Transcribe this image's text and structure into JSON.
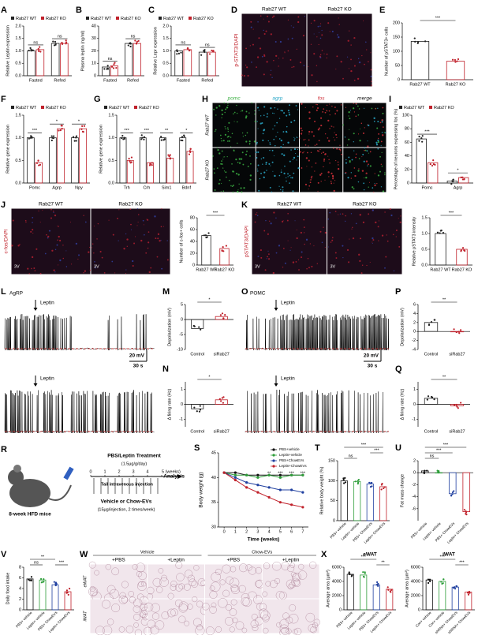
{
  "chart_data": [
    {
      "type": "bar",
      "panel": "A",
      "ylabel": "Relative Leptin expression",
      "categories": [
        "Fasted",
        "Refed"
      ],
      "series": [
        {
          "name": "Rab27 WT",
          "color": "#222222",
          "values": [
            1.0,
            1.3
          ]
        },
        {
          "name": "Rab27 KO",
          "color": "#c0202a",
          "values": [
            1.05,
            1.3
          ]
        }
      ],
      "ylim": [
        0,
        2
      ],
      "yticks": [
        {
          "value": 0,
          "label": "0.0"
        },
        0.5,
        {
          "value": 1,
          "label": "1.0"
        },
        1.5,
        {
          "value": 2,
          "label": "2.0"
        }
      ],
      "sig": [
        "ns",
        "ns"
      ]
    },
    {
      "type": "bar",
      "panel": "B",
      "ylabel": "Plasma leptin (ng/ml)",
      "categories": [
        "Fasted",
        "Refed"
      ],
      "series": [
        {
          "name": "Rab27 WT",
          "color": "#222222",
          "values": [
            7,
            26
          ]
        },
        {
          "name": "Rab27 KO",
          "color": "#c0202a",
          "values": [
            8,
            26
          ]
        }
      ],
      "ylim": [
        0,
        40
      ],
      "yticks": [
        0,
        10,
        20,
        30,
        40
      ],
      "sig": [
        "ns",
        "ns"
      ]
    },
    {
      "type": "bar",
      "panel": "C",
      "ylabel": "Relative Lepr expression",
      "categories": [
        "Fasted",
        "Refed"
      ],
      "series": [
        {
          "name": "Rab27 WT",
          "color": "#222222",
          "values": [
            1.0,
            0.95
          ]
        },
        {
          "name": "Rab27 KO",
          "color": "#c0202a",
          "values": [
            1.05,
            0.95
          ]
        }
      ],
      "ylim": [
        0,
        2
      ],
      "yticks": [
        {
          "value": 0,
          "label": "0.0"
        },
        0.5,
        {
          "value": 1,
          "label": "1.0"
        },
        1.5,
        {
          "value": 2,
          "label": "2.0"
        }
      ],
      "sig": [
        "ns",
        "ns"
      ]
    },
    {
      "type": "bar",
      "panel": "E",
      "ylabel": "Number of pSTAT3+ cells",
      "categories": [
        "Rab27 WT",
        "Rab27 KO"
      ],
      "values": [
        135,
        65
      ],
      "colors": [
        "#222222",
        "#c0202a"
      ],
      "ylim": [
        0,
        200
      ],
      "yticks": [
        0,
        50,
        100,
        150,
        200
      ],
      "sig": [
        "***"
      ]
    },
    {
      "type": "bar",
      "panel": "F",
      "ylabel": "Relative gene expression",
      "categories": [
        "Pomc",
        "Agrp",
        "Npy"
      ],
      "series": [
        {
          "name": "Rab27 WT",
          "color": "#222222",
          "values": [
            1.0,
            1.0,
            1.0
          ]
        },
        {
          "name": "Rab27 KO",
          "color": "#c0202a",
          "values": [
            0.45,
            1.2,
            1.2
          ]
        }
      ],
      "ylim": [
        0,
        1.5
      ],
      "yticks": [
        {
          "value": 0,
          "label": "0.0"
        },
        0.5,
        {
          "value": 1,
          "label": "1.0"
        },
        1.5
      ],
      "sig": [
        "***",
        "*",
        "*"
      ]
    },
    {
      "type": "bar",
      "panel": "G",
      "ylabel": "Relative gene expression",
      "categories": [
        "Trh",
        "Crh",
        "Sim1",
        "Bdnf"
      ],
      "series": [
        {
          "name": "Rab27 WT",
          "color": "#222222",
          "values": [
            1.0,
            1.0,
            1.0,
            1.0
          ]
        },
        {
          "name": "Rab27 KO",
          "color": "#c0202a",
          "values": [
            0.5,
            0.45,
            0.55,
            0.7
          ]
        }
      ],
      "ylim": [
        0,
        1.5
      ],
      "yticks": [
        {
          "value": 0,
          "label": "0.0"
        },
        0.5,
        {
          "value": 1,
          "label": "1.0"
        },
        1.5
      ],
      "sig": [
        "***",
        "***",
        "**",
        "*"
      ]
    },
    {
      "type": "bar",
      "panel": "I",
      "ylabel": "Percentage of neurons expressing fos (%)",
      "categories": [
        "Pomc",
        "Agrp"
      ],
      "series": [
        {
          "name": "Rab27 WT",
          "color": "#222222",
          "values": [
            65,
            3
          ]
        },
        {
          "name": "Rab27 KO",
          "color": "#c0202a",
          "values": [
            30,
            8
          ]
        }
      ],
      "ylim": [
        0,
        100
      ],
      "yticks": [
        0,
        20,
        40,
        60,
        80,
        100
      ],
      "sig": [
        "***",
        "*"
      ]
    },
    {
      "type": "bar",
      "ylabel": "Number of c-fos+ cells",
      "categories": [
        "Rab27 WT",
        "Rab27 KO"
      ],
      "values": [
        50,
        28
      ],
      "colors": [
        "#222222",
        "#c0202a"
      ],
      "ylim": [
        0,
        80
      ],
      "yticks": [
        0,
        20,
        40,
        60,
        80
      ],
      "sig": [
        "***"
      ]
    },
    {
      "type": "bar",
      "ylabel": "Relative pSTAT3 intensity",
      "categories": [
        "Rab27 WT",
        "Rab27 KO"
      ],
      "values": [
        1.0,
        0.5
      ],
      "colors": [
        "#222222",
        "#c0202a"
      ],
      "ylim": [
        0,
        1.5
      ],
      "yticks": [
        {
          "value": 0,
          "label": "0.0"
        },
        0.5,
        {
          "value": 1,
          "label": "1.0"
        },
        1.5
      ],
      "sig": [
        "***"
      ]
    },
    {
      "type": "bar",
      "panel": "M",
      "ylabel": "Depolarization (mV)",
      "categories": [
        "Control",
        "siRab27"
      ],
      "values": [
        -3,
        1
      ],
      "colors": [
        "#222222",
        "#c0202a"
      ],
      "ylim": [
        -10,
        5
      ],
      "yticks": [
        -10,
        -5,
        0,
        5
      ],
      "sig": [
        "*"
      ]
    },
    {
      "type": "bar",
      "panel": "N",
      "ylabel": "Δ firing rate (Hz)",
      "categories": [
        "Control",
        "siRab27"
      ],
      "values": [
        -0.3,
        0.3
      ],
      "colors": [
        "#222222",
        "#c0202a"
      ],
      "ylim": [
        -1.5,
        1.5
      ],
      "yticks": [
        -1,
        0,
        1
      ],
      "sig": [
        "*"
      ]
    },
    {
      "type": "bar",
      "panel": "P",
      "ylabel": "Depolarization (mV)",
      "categories": [
        "Control",
        "siRab27"
      ],
      "values": [
        2,
        0
      ],
      "colors": [
        "#222222",
        "#c0202a"
      ],
      "ylim": [
        -4,
        6
      ],
      "yticks": [
        -4,
        -2,
        0,
        2,
        4,
        6
      ],
      "sig": [
        "**"
      ]
    },
    {
      "type": "bar",
      "panel": "Q",
      "ylabel": "Δ firing rate (Hz)",
      "categories": [
        "Control",
        "siRab27"
      ],
      "values": [
        0.4,
        -0.1
      ],
      "colors": [
        "#222222",
        "#c0202a"
      ],
      "ylim": [
        -1.5,
        1.5
      ],
      "yticks": [
        -1,
        0,
        1
      ],
      "sig": [
        "**"
      ]
    },
    {
      "type": "line",
      "panel": "S",
      "ylabel": "Body weight (g)",
      "xlabel": "Time (weeks)",
      "x": [
        0,
        1,
        2,
        3,
        4,
        5,
        6,
        7
      ],
      "series": [
        {
          "name": "PBS+vehicle",
          "color": "#111111",
          "values": [
            41,
            41,
            40.5,
            40.5,
            40.5,
            40.5,
            40.5,
            40.5
          ]
        },
        {
          "name": "Leptin+vehicle",
          "color": "#2e9e3a",
          "values": [
            41,
            40.5,
            40.5,
            40,
            40.5,
            40,
            40.5,
            40.5
          ]
        },
        {
          "name": "PBS+ChowEVs",
          "color": "#2040a0",
          "values": [
            41,
            40,
            39,
            38.5,
            38,
            37.5,
            37.5,
            37
          ]
        },
        {
          "name": "Leptin+ChowEVs",
          "color": "#c0202a",
          "values": [
            41,
            39.5,
            38,
            37,
            36,
            35,
            34.5,
            34
          ]
        }
      ],
      "xlim": [
        -0.5,
        7.5
      ],
      "xticks": [
        0,
        1,
        2,
        3,
        4,
        5,
        6,
        7
      ],
      "ylim": [
        30,
        45
      ],
      "yticks": [
        30,
        35,
        40,
        45
      ],
      "annotations": [
        {
          "x": 4,
          "text": "**"
        },
        {
          "x": 5,
          "text": "***"
        },
        {
          "x": 6,
          "text": "***"
        },
        {
          "x": 7,
          "text": "***"
        }
      ]
    },
    {
      "type": "bar",
      "panel": "T",
      "ylabel": "Relative body weight (%)",
      "categories": [
        "PBS+ vehicle",
        "Leptin+ vehicle",
        "PBS+ ChowEVs",
        "Leptin+ ChowEVs"
      ],
      "values": [
        100,
        98,
        92,
        85
      ],
      "colors": [
        "#111111",
        "#2e9e3a",
        "#2040a0",
        "#c0202a"
      ],
      "ylim": [
        0,
        150
      ],
      "yticks": [
        0,
        50,
        100,
        150
      ],
      "sig": [
        "***",
        "ns",
        "***"
      ]
    },
    {
      "type": "bar",
      "panel": "U",
      "ylabel": "Fat mass change",
      "categories": [
        "PBS+ vehicle",
        "Leptin+ vehicle",
        "PBS+ ChowEVs",
        "Leptin+ ChowEVs"
      ],
      "values": [
        0.3,
        0,
        -3.5,
        -6.5
      ],
      "colors": [
        "#111111",
        "#2e9e3a",
        "#2040a0",
        "#c0202a"
      ],
      "ylim": [
        -8,
        2
      ],
      "yticks": [
        -6,
        -4,
        -2,
        0,
        2
      ],
      "sig": [
        "***",
        "***",
        "ns"
      ]
    },
    {
      "type": "bar",
      "panel": "V",
      "ylabel": "Daily food intake",
      "categories": [
        "PBS+ vehicle",
        "Leptin+ vehicle",
        "PBS+ ChowEVs",
        "Leptin+ ChowEVs"
      ],
      "values": [
        5.8,
        5.6,
        4.7,
        3.4
      ],
      "colors": [
        "#111111",
        "#2e9e3a",
        "#2040a0",
        "#c0202a"
      ],
      "ylim": [
        0,
        8
      ],
      "yticks": [
        0,
        2,
        4,
        6,
        8
      ],
      "sig": [
        "**",
        "ns",
        "***"
      ]
    },
    {
      "type": "bar",
      "panel": "X",
      "title": "eWAT",
      "ylabel": "Average area (μm²)",
      "categories": [
        "PBS+ vehicle",
        "Leptin+ vehicle",
        "PBS+ ChowEVs",
        "Leptin+ ChowEVs"
      ],
      "values": [
        5000,
        4900,
        3500,
        2900
      ],
      "colors": [
        "#111111",
        "#2e9e3a",
        "#2040a0",
        "#c0202a"
      ],
      "ylim": [
        0,
        6000
      ],
      "yticks": [
        0,
        2000,
        4000,
        6000
      ],
      "sig": [
        "***",
        "**"
      ]
    },
    {
      "type": "bar",
      "title": "iWAT",
      "ylabel": "Average area (μm²)",
      "categories": [
        "Con+ vehicle",
        "Con+ vehicle",
        "shRNA+ ChowEVs",
        "shRNA+ ChowEVs"
      ],
      "values": [
        4200,
        4000,
        3200,
        2500
      ],
      "colors": [
        "#111111",
        "#2e9e3a",
        "#2040a0",
        "#c0202a"
      ],
      "ylim": [
        0,
        6000
      ],
      "yticks": [
        0,
        2000,
        4000,
        6000
      ],
      "sig": [
        "***",
        "***"
      ]
    }
  ],
  "figures": [
    {
      "panel": "D",
      "columns": [
        "Rab27 WT",
        "Rab27 KO"
      ],
      "stain": "p-STAT3/DAPI",
      "labels": []
    },
    {
      "panel": "H",
      "columns": [
        "pomc",
        "agrp",
        "fos",
        "merge"
      ],
      "column_colors": [
        "#3cb043",
        "#2aa8c8",
        "#d0303a",
        "#111111"
      ],
      "rows": [
        "Rab27 WT",
        "Rab27 KO"
      ],
      "labels": []
    },
    {
      "panel": "J",
      "columns": [
        "Rab27 WT",
        "Rab27 KO"
      ],
      "stain": "c-fos/DAPI",
      "labels": [
        "3V",
        "3V"
      ]
    },
    {
      "panel": "K",
      "columns": [
        "Rab27 WT",
        "Rab27 KO"
      ],
      "stain": "pSTAT3/DAPI",
      "labels": [
        "3V",
        "3V"
      ]
    },
    {
      "panel": "W",
      "groups": [
        "Vehicle",
        "Chow-EVs"
      ],
      "columns": [
        "+PBS",
        "+Leptin",
        "+PBS",
        "+Leptin"
      ],
      "rows": [
        "eWAT",
        "iWAT"
      ],
      "labels": []
    }
  ],
  "traces": [
    {
      "panel": "L",
      "cell": "AgRP",
      "stimuli": [
        "Leptin",
        "Leptin"
      ],
      "scale_v": "20 mV",
      "scale_t": "30 s"
    },
    {
      "panel": "O",
      "cell": "POMC",
      "stimuli": [
        "Leptin",
        "Leptin"
      ],
      "scale_v": "20 mV",
      "scale_t": "30 s"
    }
  ],
  "schematic": {
    "panel": "R",
    "mice": "8-week HFD mice",
    "treatment": "PBS/Leptin Treatment",
    "dose": "(1.5μg/g/day)",
    "timeline": [
      "0",
      "1",
      "2",
      "3",
      "4",
      "5 (weeks)"
    ],
    "injection": "Tail intravenous injection",
    "analysis": "Analysis",
    "vehicle": "Vehicle or Chow-EVs",
    "ev_dose": "(15μg/injection, 2 times/week)"
  }
}
